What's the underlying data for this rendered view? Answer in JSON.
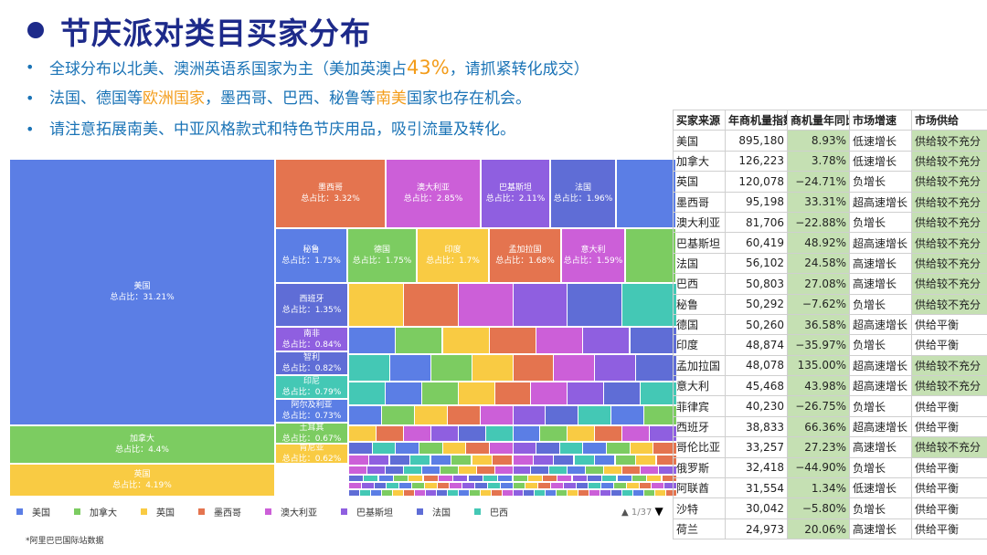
{
  "title": "节庆派对类目买家分布",
  "bullets": [
    {
      "p1": "全球分布以北美、澳洲英语系国家为主（美加英澳占",
      "pct": "43%",
      "p2": "，请抓紧转化成交）"
    },
    {
      "p1": "法国、德国等",
      "h1": "欧洲国家",
      "p2": "，墨西哥、巴西、秘鲁等",
      "h2": "南美",
      "p3": "国家也存在机会。"
    },
    {
      "p1": "请注意拓展南美、中亚风格款式和特色节庆用品，吸引流量及转化。"
    }
  ],
  "source": "*阿里巴巴国际站数据",
  "pager": {
    "prev": "▲",
    "page": "1/37",
    "next": "▼"
  },
  "table": {
    "headers": [
      "买家来源",
      "年商机量指数",
      "商机量年同比",
      "市场增速",
      "市场供给"
    ],
    "rows": [
      [
        "美国",
        "895,180",
        "8.93%",
        "低速增长",
        "供给较不充分"
      ],
      [
        "加拿大",
        "126,223",
        "3.78%",
        "低速增长",
        "供给较不充分"
      ],
      [
        "英国",
        "120,078",
        "−24.71%",
        "负增长",
        "供给较不充分"
      ],
      [
        "墨西哥",
        "95,198",
        "33.31%",
        "超高速增长",
        "供给较不充分"
      ],
      [
        "澳大利亚",
        "81,706",
        "−22.88%",
        "负增长",
        "供给较不充分"
      ],
      [
        "巴基斯坦",
        "60,419",
        "48.92%",
        "超高速增长",
        "供给较不充分"
      ],
      [
        "法国",
        "56,102",
        "24.58%",
        "高速增长",
        "供给较不充分"
      ],
      [
        "巴西",
        "50,803",
        "27.08%",
        "高速增长",
        "供给较不充分"
      ],
      [
        "秘鲁",
        "50,292",
        "−7.62%",
        "负增长",
        "供给较不充分"
      ],
      [
        "德国",
        "50,260",
        "36.58%",
        "超高速增长",
        "供给平衡"
      ],
      [
        "印度",
        "48,874",
        "−35.97%",
        "负增长",
        "供给平衡"
      ],
      [
        "孟加拉国",
        "48,078",
        "135.00%",
        "超高速增长",
        "供给较不充分"
      ],
      [
        "意大利",
        "45,468",
        "43.98%",
        "超高速增长",
        "供给较不充分"
      ],
      [
        "菲律宾",
        "40,230",
        "−26.75%",
        "负增长",
        "供给平衡"
      ],
      [
        "西班牙",
        "38,833",
        "66.36%",
        "超高速增长",
        "供给平衡"
      ],
      [
        "哥伦比亚",
        "33,257",
        "27.23%",
        "高速增长",
        "供给较不充分"
      ],
      [
        "俄罗斯",
        "32,418",
        "−44.90%",
        "负增长",
        "供给平衡"
      ],
      [
        "阿联酋",
        "31,554",
        "1.34%",
        "低速增长",
        "供给平衡"
      ],
      [
        "沙特",
        "30,042",
        "−5.80%",
        "负增长",
        "供给平衡"
      ],
      [
        "荷兰",
        "24,973",
        "20.06%",
        "高速增长",
        "供给平衡"
      ]
    ],
    "green_cols": [
      2,
      4
    ],
    "green_rows_col4": [
      0,
      1,
      2,
      3,
      4,
      5,
      6,
      7,
      8,
      11,
      12,
      15
    ]
  },
  "chart_data": {
    "type": "treemap",
    "share_label": "总占比：",
    "items": [
      {
        "name": "美国",
        "share": "31.21%",
        "color": "#5b7ee5"
      },
      {
        "name": "加拿大",
        "share": "4.4%",
        "color": "#7ccc61"
      },
      {
        "name": "英国",
        "share": "4.19%",
        "color": "#f9cb43"
      },
      {
        "name": "墨西哥",
        "share": "3.32%",
        "color": "#e4744f"
      },
      {
        "name": "澳大利亚",
        "share": "2.85%",
        "color": "#cc5fd8"
      },
      {
        "name": "巴基斯坦",
        "share": "2.11%",
        "color": "#8f5fe0"
      },
      {
        "name": "法国",
        "share": "1.96%",
        "color": "#5f6dd6"
      },
      {
        "name": "秘鲁",
        "share": "1.75%",
        "color": "#5b7ee5"
      },
      {
        "name": "德国",
        "share": "1.75%",
        "color": "#7ccc61"
      },
      {
        "name": "印度",
        "share": "1.7%",
        "color": "#f9cb43"
      },
      {
        "name": "孟加拉国",
        "share": "1.68%",
        "color": "#e4744f"
      },
      {
        "name": "意大利",
        "share": "1.59%",
        "color": "#cc5fd8"
      },
      {
        "name": "西班牙",
        "share": "1.35%",
        "color": "#5f6dd6"
      },
      {
        "name": "南非",
        "share": "0.84%",
        "color": "#8f5fe0"
      },
      {
        "name": "智利",
        "share": "0.82%",
        "color": "#5f6dd6"
      },
      {
        "name": "印尼",
        "share": "0.79%",
        "color": "#44c8b5"
      },
      {
        "name": "阿尔及利亚",
        "share": "0.73%",
        "color": "#5b7ee5"
      },
      {
        "name": "土耳其",
        "share": "0.67%",
        "color": "#7ccc61"
      },
      {
        "name": "肯尼亚",
        "share": "0.62%",
        "color": "#f9cb43"
      }
    ],
    "legend": [
      {
        "name": "美国",
        "color": "#5b7ee5"
      },
      {
        "name": "加拿大",
        "color": "#7ccc61"
      },
      {
        "name": "英国",
        "color": "#f9cb43"
      },
      {
        "name": "墨西哥",
        "color": "#e4744f"
      },
      {
        "name": "澳大利亚",
        "color": "#cc5fd8"
      },
      {
        "name": "巴基斯坦",
        "color": "#8f5fe0"
      },
      {
        "name": "法国",
        "color": "#5f6dd6"
      },
      {
        "name": "巴西",
        "color": "#44c8b5"
      }
    ]
  }
}
